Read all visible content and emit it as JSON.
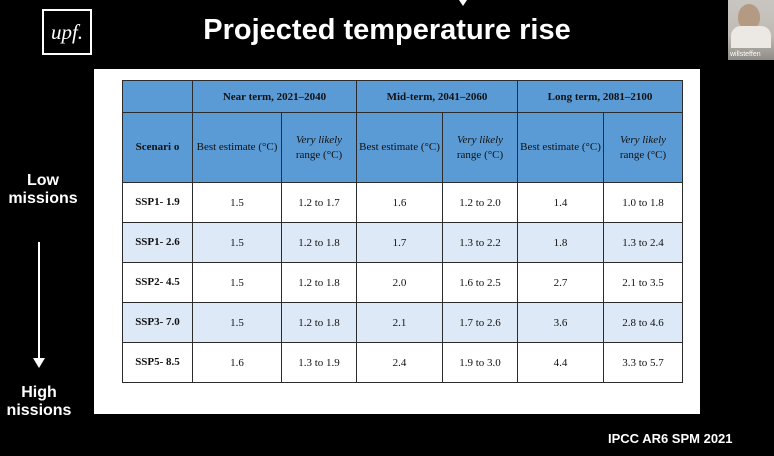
{
  "logo": {
    "text": "upf."
  },
  "title": "Projected temperature rise",
  "participant": {
    "name": "willsteffen"
  },
  "table": {
    "periods": [
      "Near term, 2021–2040",
      "Mid-term, 2041–2060",
      "Long term, 2081–2100"
    ],
    "scenario_header": "Scenari o",
    "best_header": "Best estimate (°C)",
    "range_header_italic": "Very likely",
    "range_header_rest": "range (°C)",
    "rows": [
      {
        "scenario": "SSP1- 1.9",
        "values": [
          "1.5",
          "1.2 to 1.7",
          "1.6",
          "1.2 to 2.0",
          "1.4",
          "1.0 to 1.8"
        ]
      },
      {
        "scenario": "SSP1- 2.6",
        "values": [
          "1.5",
          "1.2 to 1.8",
          "1.7",
          "1.3 to 2.2",
          "1.8",
          "1.3 to 2.4"
        ]
      },
      {
        "scenario": "SSP2- 4.5",
        "values": [
          "1.5",
          "1.2 to 1.8",
          "2.0",
          "1.6 to 2.5",
          "2.7",
          "2.1 to 3.5"
        ]
      },
      {
        "scenario": "SSP3- 7.0",
        "values": [
          "1.5",
          "1.2 to 1.8",
          "2.1",
          "1.7 to 2.6",
          "3.6",
          "2.8 to 4.6"
        ]
      },
      {
        "scenario": "SSP5- 8.5",
        "values": [
          "1.6",
          "1.3 to 1.9",
          "2.4",
          "1.9 to 3.0",
          "4.4",
          "3.3 to 5.7"
        ]
      }
    ]
  },
  "side_labels": {
    "low": "Low missions",
    "high": "High nissions"
  },
  "source": "IPCC AR6 SPM 2021"
}
